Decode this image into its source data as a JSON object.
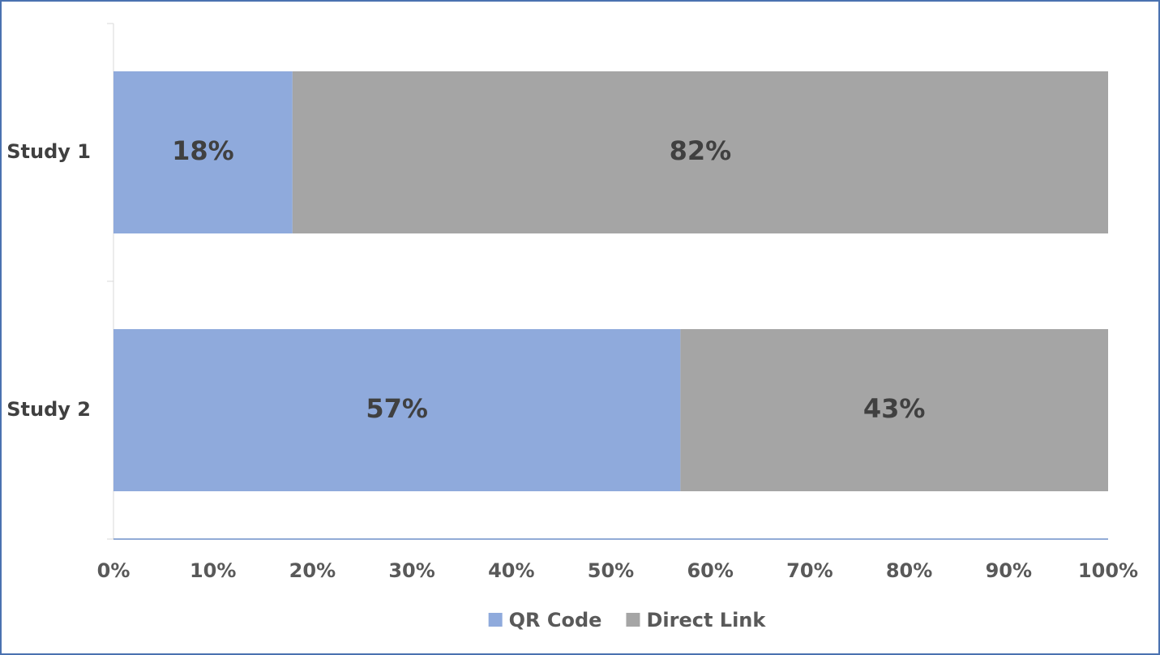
{
  "chart_data": {
    "type": "stacked_bar_horizontal",
    "categories": [
      "Study 1",
      "Study 2"
    ],
    "series": [
      {
        "name": "QR Code",
        "color": "#8faadc",
        "values": [
          18,
          57
        ],
        "value_labels": [
          "18%",
          "57%"
        ]
      },
      {
        "name": "Direct Link",
        "color": "#a5a5a5",
        "values": [
          82,
          43
        ],
        "value_labels": [
          "82%",
          "43%"
        ]
      }
    ],
    "xlim": [
      0,
      100
    ],
    "xticks": [
      {
        "value": 0,
        "label": "0%"
      },
      {
        "value": 10,
        "label": "10%"
      },
      {
        "value": 20,
        "label": "20%"
      },
      {
        "value": 30,
        "label": "30%"
      },
      {
        "value": 40,
        "label": "40%"
      },
      {
        "value": 50,
        "label": "50%"
      },
      {
        "value": 60,
        "label": "60%"
      },
      {
        "value": 70,
        "label": "70%"
      },
      {
        "value": 80,
        "label": "80%"
      },
      {
        "value": 90,
        "label": "90%"
      },
      {
        "value": 100,
        "label": "100%"
      }
    ],
    "legend": "bottom"
  }
}
